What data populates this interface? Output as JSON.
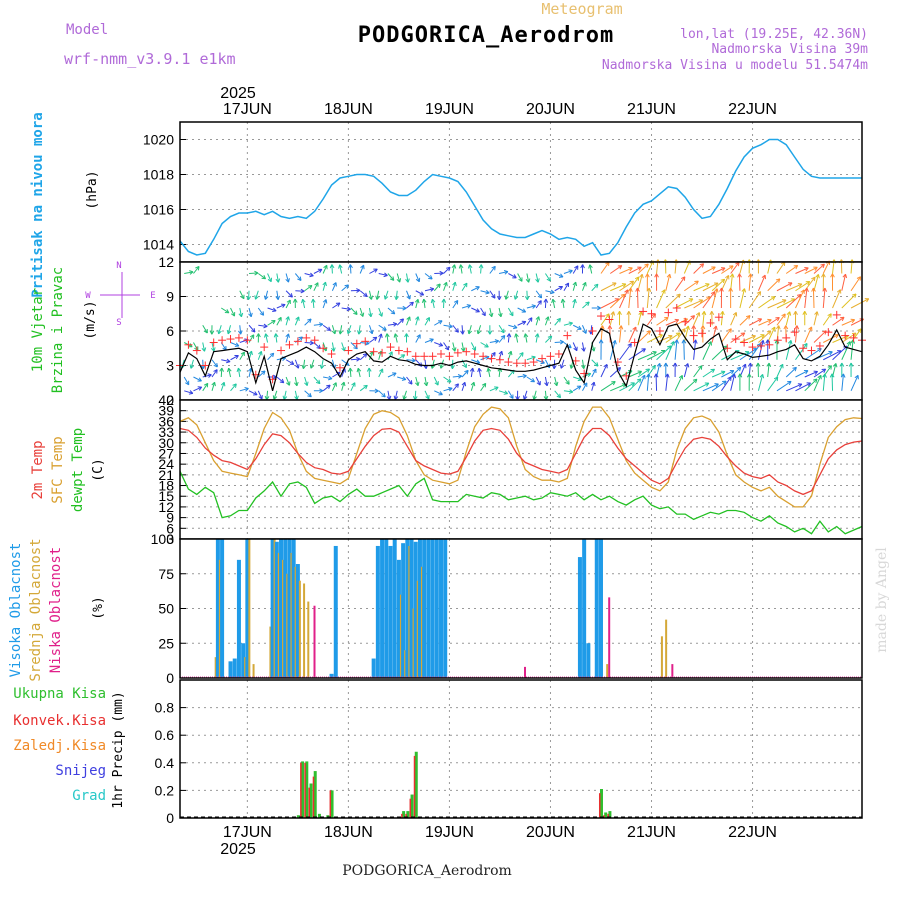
{
  "header": {
    "model_label": "Model",
    "model_name": "wrf-nmm_v3.9.1 e1km",
    "station": "PODGORICA_Aerodrom",
    "meteogram_label": "Meteogram",
    "lonlat": "lon,lat (19.25E, 42.36N)",
    "elevation": "Nadmorska Visina 39m",
    "model_elevation": "Nadmorska Visina u modelu 51.5474m",
    "credit": "made by Angel",
    "footer_station": "PODGORICA_Aerodrom",
    "year": "2025"
  },
  "colors": {
    "pressure": "#1fa5e8",
    "wind_speed": "#000000",
    "gust_marker": "#ff3030",
    "temp_2m": "#e8403a",
    "temp_sfc": "#d9a030",
    "dewpoint": "#22c022",
    "cloud_high": "#1f9be8",
    "cloud_mid": "#d4a838",
    "cloud_low": "#e0208a",
    "precip_total": "#2fbf2f",
    "precip_conv": "#e83030",
    "precip_frz": "#f08a28",
    "snow": "#4040e0",
    "graupel": "#28c8c8"
  },
  "x_axis": {
    "date_labels": [
      "17JUN",
      "18JUN",
      "19JUN",
      "20JUN",
      "21JUN",
      "22JUN"
    ],
    "hours_start": -16,
    "hours_end": 146
  },
  "chart_data": [
    {
      "type": "line",
      "panel": "pressure",
      "ylabel_main": "Pritisak na nivou mora",
      "unit": "(hPa)",
      "ylim": [
        1013,
        1021
      ],
      "ticks": [
        "1014",
        "1016",
        "1018",
        "1020"
      ],
      "tick_values": [
        1014,
        1016,
        1018,
        1020
      ],
      "x_hours": [
        -16,
        -14,
        -12,
        -10,
        -8,
        -6,
        -4,
        -2,
        0,
        2,
        4,
        6,
        8,
        10,
        12,
        14,
        16,
        18,
        20,
        22,
        24,
        26,
        28,
        30,
        32,
        34,
        36,
        38,
        40,
        42,
        44,
        46,
        48,
        50,
        52,
        54,
        56,
        58,
        60,
        62,
        64,
        66,
        68,
        70,
        72,
        74,
        76,
        78,
        80,
        82,
        84,
        86,
        88,
        90,
        92,
        94,
        96,
        98,
        100,
        102,
        104,
        106,
        108,
        110,
        112,
        114,
        116,
        118,
        120,
        122,
        124,
        126,
        128,
        130,
        132,
        134,
        136,
        138,
        140,
        142,
        144,
        146
      ],
      "values": [
        1014.2,
        1013.6,
        1013.4,
        1013.5,
        1014.3,
        1015.2,
        1015.6,
        1015.8,
        1015.8,
        1015.9,
        1015.7,
        1015.9,
        1015.6,
        1015.5,
        1015.6,
        1015.5,
        1015.9,
        1016.6,
        1017.4,
        1017.8,
        1017.9,
        1018.0,
        1018.0,
        1017.9,
        1017.5,
        1017.0,
        1016.8,
        1016.8,
        1017.1,
        1017.6,
        1018.0,
        1017.9,
        1017.8,
        1017.6,
        1017.0,
        1016.2,
        1015.4,
        1014.9,
        1014.6,
        1014.5,
        1014.4,
        1014.4,
        1014.6,
        1014.8,
        1014.6,
        1014.3,
        1014.4,
        1014.3,
        1013.9,
        1014.1,
        1013.4,
        1013.5,
        1014.1,
        1015.0,
        1015.8,
        1016.3,
        1016.5,
        1016.9,
        1017.3,
        1017.2,
        1016.7,
        1016.0,
        1015.5,
        1015.6,
        1016.3,
        1017.2,
        1018.2,
        1019.0,
        1019.5,
        1019.7,
        1020.0,
        1020.0,
        1019.7,
        1019.0,
        1018.3,
        1017.9,
        1017.8,
        1017.8,
        1017.8,
        1017.8,
        1017.8,
        1017.8
      ]
    },
    {
      "type": "line",
      "panel": "wind",
      "ylabel_main": "10m Vjetar",
      "ylabel_sub": "Brzina i Pravac",
      "unit": "(m/s)",
      "compass": [
        "N",
        "W",
        "E",
        "S"
      ],
      "ylim": [
        0,
        12
      ],
      "ticks": [
        "0",
        "3",
        "6",
        "9",
        "12"
      ],
      "tick_values": [
        0,
        3,
        6,
        9,
        12
      ],
      "x_hours": [
        -16,
        -14,
        -12,
        -10,
        -8,
        -6,
        -4,
        -2,
        0,
        2,
        4,
        6,
        8,
        10,
        12,
        14,
        16,
        18,
        20,
        22,
        24,
        26,
        28,
        30,
        32,
        34,
        36,
        38,
        40,
        42,
        44,
        46,
        48,
        50,
        52,
        54,
        56,
        58,
        60,
        62,
        64,
        66,
        68,
        70,
        72,
        74,
        76,
        78,
        80,
        82,
        84,
        86,
        88,
        90,
        92,
        94,
        96,
        98,
        100,
        102,
        104,
        106,
        108,
        110,
        112,
        114,
        116,
        118,
        120,
        122,
        124,
        126,
        128,
        130,
        132,
        134,
        136,
        138,
        140,
        142,
        144,
        146
      ],
      "speed": [
        2.4,
        4.1,
        3.6,
        2.1,
        4.2,
        4.3,
        4.4,
        4.5,
        4.2,
        1.5,
        3.8,
        0.8,
        3.6,
        3.9,
        4.2,
        4.6,
        4.2,
        3.6,
        3.2,
        2.0,
        3.5,
        4.0,
        4.2,
        3.4,
        3.3,
        3.8,
        3.5,
        3.4,
        3.1,
        3.0,
        3.0,
        3.2,
        3.0,
        3.3,
        3.4,
        3.2,
        3.0,
        2.8,
        2.7,
        2.6,
        2.5,
        2.5,
        2.6,
        2.8,
        3.0,
        3.2,
        4.8,
        2.6,
        1.5,
        5.0,
        6.2,
        5.8,
        2.5,
        1.2,
        4.0,
        6.6,
        6.2,
        4.8,
        6.4,
        6.6,
        5.4,
        4.4,
        4.6,
        5.3,
        5.8,
        3.5,
        4.2,
        4.0,
        3.7,
        3.8,
        3.9,
        4.2,
        4.4,
        4.8,
        3.6,
        3.4,
        3.8,
        4.8,
        6.1,
        4.6,
        4.4,
        4.2
      ],
      "gust": [
        3.0,
        4.8,
        4.3,
        3.0,
        5.0,
        5.2,
        5.3,
        5.4,
        5.2,
        2.2,
        4.6,
        1.8,
        4.3,
        4.8,
        5.1,
        5.4,
        5.2,
        4.5,
        4.0,
        2.8,
        4.3,
        4.9,
        5.1,
        4.2,
        4.1,
        4.6,
        4.3,
        4.2,
        3.8,
        3.8,
        3.8,
        4.0,
        3.8,
        4.1,
        4.2,
        4.0,
        3.8,
        3.6,
        3.5,
        3.3,
        3.2,
        3.2,
        3.3,
        3.6,
        3.8,
        4.0,
        5.6,
        3.4,
        2.3,
        6.0,
        7.3,
        7.0,
        3.3,
        2.1,
        5.0,
        7.7,
        7.5,
        6.0,
        7.6,
        8.0,
        6.8,
        5.6,
        5.8,
        6.7,
        7.2,
        4.5,
        5.3,
        5.0,
        4.6,
        4.7,
        4.8,
        5.2,
        5.4,
        5.9,
        4.5,
        4.3,
        4.7,
        5.9,
        7.4,
        5.6,
        5.4,
        5.2
      ]
    },
    {
      "type": "line",
      "panel": "temperature",
      "series_labels": [
        "2m Temp",
        "SFC Temp",
        "dewpt Temp"
      ],
      "unit": "(C)",
      "ylim": [
        3,
        42
      ],
      "ticks": [
        "3",
        "6",
        "9",
        "12",
        "15",
        "18",
        "21",
        "24",
        "27",
        "30",
        "33",
        "36",
        "39",
        "42"
      ],
      "tick_values": [
        3,
        6,
        9,
        12,
        15,
        18,
        21,
        24,
        27,
        30,
        33,
        36,
        39,
        42
      ],
      "x_hours": [
        -16,
        -14,
        -12,
        -10,
        -8,
        -6,
        -4,
        -2,
        0,
        2,
        4,
        6,
        8,
        10,
        12,
        14,
        16,
        18,
        20,
        22,
        24,
        26,
        28,
        30,
        32,
        34,
        36,
        38,
        40,
        42,
        44,
        46,
        48,
        50,
        52,
        54,
        56,
        58,
        60,
        62,
        64,
        66,
        68,
        70,
        72,
        74,
        76,
        78,
        80,
        82,
        84,
        86,
        88,
        90,
        92,
        94,
        96,
        98,
        100,
        102,
        104,
        106,
        108,
        110,
        112,
        114,
        116,
        118,
        120,
        122,
        124,
        126,
        128,
        130,
        132,
        134,
        136,
        138,
        140,
        142,
        144,
        146
      ],
      "series": [
        {
          "name": "2m Temp",
          "values": [
            34.0,
            33.5,
            31.5,
            28.5,
            26.5,
            25.0,
            24.5,
            23.5,
            22.5,
            25.5,
            29.5,
            32.5,
            32.0,
            30.0,
            27.0,
            24.5,
            23.0,
            22.5,
            21.5,
            21.2,
            22.0,
            25.5,
            29.0,
            32.0,
            33.8,
            34.0,
            33.0,
            29.0,
            25.0,
            23.5,
            22.5,
            21.5,
            21.2,
            22.0,
            26.0,
            30.5,
            33.5,
            34.0,
            33.5,
            31.0,
            27.0,
            24.5,
            23.5,
            22.5,
            22.0,
            21.5,
            22.5,
            27.0,
            31.5,
            34.0,
            34.0,
            32.0,
            28.5,
            25.5,
            23.5,
            21.5,
            19.5,
            18.5,
            20.0,
            24.5,
            28.5,
            31.0,
            31.5,
            31.0,
            29.0,
            26.0,
            23.5,
            21.5,
            20.5,
            20.0,
            21.0,
            19.0,
            18.0,
            16.5,
            15.5,
            16.5,
            21.0,
            25.5,
            28.0,
            29.5,
            30.2,
            30.5
          ]
        },
        {
          "name": "SFC Temp",
          "values": [
            36.0,
            37.0,
            35.0,
            30.0,
            25.0,
            22.0,
            21.5,
            21.0,
            20.5,
            27.0,
            34.0,
            38.5,
            37.0,
            33.5,
            27.0,
            22.0,
            20.0,
            19.5,
            19.0,
            18.5,
            20.0,
            27.0,
            34.0,
            38.0,
            39.0,
            38.5,
            37.0,
            32.0,
            25.0,
            21.0,
            19.5,
            19.0,
            18.5,
            19.5,
            27.5,
            34.5,
            38.0,
            40.0,
            39.5,
            37.0,
            29.0,
            22.5,
            20.5,
            19.5,
            19.5,
            19.0,
            20.0,
            29.0,
            36.0,
            40.0,
            40.0,
            37.0,
            31.0,
            25.0,
            21.5,
            19.5,
            17.5,
            16.5,
            19.0,
            28.0,
            34.0,
            37.0,
            37.5,
            36.5,
            33.0,
            26.5,
            21.0,
            19.0,
            17.5,
            16.5,
            17.5,
            15.0,
            13.5,
            12.0,
            12.0,
            15.0,
            24.0,
            31.5,
            34.5,
            36.5,
            37.0,
            36.8
          ]
        },
        {
          "name": "dewpt Temp",
          "values": [
            22.0,
            17.0,
            15.5,
            17.5,
            16.0,
            9.0,
            9.5,
            11.0,
            11.0,
            14.5,
            16.5,
            19.0,
            15.0,
            18.5,
            19.0,
            17.5,
            13.0,
            14.5,
            15.0,
            13.5,
            15.5,
            17.0,
            15.0,
            15.0,
            16.0,
            17.0,
            18.0,
            15.0,
            18.5,
            20.0,
            14.0,
            13.5,
            13.5,
            13.5,
            15.5,
            15.0,
            14.5,
            16.0,
            15.5,
            14.0,
            14.5,
            15.0,
            14.0,
            14.5,
            16.0,
            15.5,
            15.0,
            16.0,
            14.0,
            15.5,
            14.0,
            15.0,
            13.5,
            12.5,
            14.0,
            15.0,
            12.5,
            11.5,
            12.0,
            10.0,
            10.0,
            8.5,
            9.5,
            10.5,
            10.0,
            11.0,
            11.0,
            10.5,
            9.0,
            8.0,
            9.5,
            7.5,
            6.5,
            5.0,
            6.0,
            4.5,
            8.0,
            5.0,
            6.5,
            4.5,
            5.5,
            6.5
          ]
        }
      ]
    },
    {
      "type": "bar",
      "panel": "clouds",
      "series_labels": [
        "Visoka Oblacnost",
        "Srednja Oblacnost",
        "Niska Oblacnost"
      ],
      "unit": "(%)",
      "ylim": [
        0,
        100
      ],
      "ticks": [
        "0",
        "25",
        "50",
        "75",
        "100"
      ],
      "tick_values": [
        0,
        25,
        50,
        75,
        100
      ],
      "x_hours": [
        -8,
        -7,
        -6,
        -4,
        -3,
        -2,
        -1,
        0,
        1,
        2,
        5,
        6,
        7,
        8,
        9,
        10,
        11,
        12,
        13,
        14,
        15,
        16,
        20,
        21,
        22,
        29,
        30,
        31,
        32,
        33,
        34,
        35,
        36,
        37,
        38,
        39,
        40,
        41,
        42,
        43,
        44,
        45,
        46,
        47,
        48,
        49,
        50,
        52,
        65,
        78,
        79,
        80,
        81,
        82,
        83,
        84,
        85,
        98,
        99,
        100
      ],
      "series": [
        {
          "name": "Visoka Oblacnost",
          "values": [
            0,
            100,
            100,
            12,
            14,
            85,
            25,
            100,
            0,
            0,
            0,
            100,
            98,
            100,
            100,
            100,
            100,
            82,
            0,
            0,
            0,
            0,
            3,
            95,
            0,
            0,
            14,
            95,
            100,
            100,
            95,
            100,
            85,
            97,
            100,
            100,
            98,
            100,
            100,
            100,
            100,
            100,
            100,
            100,
            0,
            0,
            0,
            0,
            0,
            0,
            87,
            100,
            25,
            0,
            100,
            100,
            0,
            0,
            0,
            0
          ]
        },
        {
          "name": "Srednja Oblacnost",
          "values": [
            15,
            85,
            0,
            0,
            0,
            0,
            15,
            100,
            10,
            0,
            37,
            100,
            90,
            85,
            75,
            90,
            80,
            70,
            68,
            55,
            0,
            0,
            0,
            0,
            0,
            0,
            0,
            0,
            0,
            0,
            0,
            0,
            60,
            20,
            95,
            50,
            70,
            80,
            0,
            0,
            0,
            0,
            0,
            0,
            0,
            0,
            0,
            0,
            0,
            0,
            0,
            0,
            0,
            0,
            0,
            0,
            10,
            30,
            42,
            0
          ]
        },
        {
          "name": "Niska Oblacnost",
          "values": [
            0,
            0,
            0,
            0,
            0,
            0,
            0,
            0,
            0,
            0,
            0,
            0,
            55,
            0,
            60,
            0,
            0,
            0,
            0,
            0,
            52,
            0,
            0,
            0,
            0,
            0,
            0,
            0,
            0,
            0,
            0,
            0,
            0,
            0,
            0,
            0,
            0,
            0,
            0,
            0,
            55,
            0,
            0,
            0,
            0,
            0,
            0,
            0,
            8,
            0,
            0,
            0,
            0,
            0,
            0,
            0,
            58,
            0,
            0,
            10
          ]
        }
      ]
    },
    {
      "type": "bar",
      "panel": "precipitation",
      "series_labels": [
        "Ukupna Kisa",
        "Konvek.Kisa",
        "Zaledj.Kisa",
        "Snijeg",
        "Grad"
      ],
      "unit": "1hr Precip (mm)",
      "ylim": [
        0,
        1.0
      ],
      "ticks": [
        "0",
        "0.2",
        "0.4",
        "0.6",
        "0.8"
      ],
      "tick_values": [
        0,
        0.2,
        0.4,
        0.6,
        0.8
      ],
      "x_hours": [
        12,
        13,
        14,
        15,
        16,
        17,
        19,
        20,
        36,
        37,
        38,
        39,
        40,
        41,
        84,
        85,
        86
      ],
      "series": [
        {
          "name": "Ukupna Kisa",
          "values": [
            0.02,
            0.41,
            0.41,
            0.25,
            0.34,
            0.03,
            0.02,
            0.2,
            0.01,
            0.05,
            0.05,
            0.17,
            0.48,
            0.01,
            0.21,
            0.04,
            0.05
          ]
        },
        {
          "name": "Konvek.Kisa",
          "values": [
            0.0,
            0.4,
            0.4,
            0.22,
            0.3,
            0.0,
            0.0,
            0.2,
            0.0,
            0.03,
            0.03,
            0.14,
            0.45,
            0.0,
            0.18,
            0.02,
            0.03
          ]
        }
      ]
    }
  ]
}
